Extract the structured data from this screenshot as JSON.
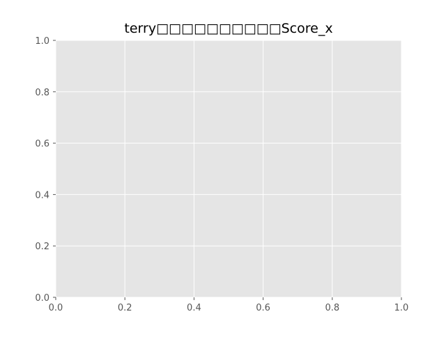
{
  "chart_data": {
    "type": "scatter",
    "title": "terry□□□□□□□□□□Score_x",
    "xlabel": "",
    "ylabel": "",
    "xlim": [
      0.0,
      1.0
    ],
    "ylim": [
      0.0,
      1.0
    ],
    "xticks": [
      "0.0",
      "0.2",
      "0.4",
      "0.6",
      "0.8",
      "1.0"
    ],
    "yticks": [
      "0.0",
      "0.2",
      "0.4",
      "0.6",
      "0.8",
      "1.0"
    ],
    "grid": true,
    "legend": "none",
    "series": [],
    "colors": {
      "plot_background": "#e5e5e5",
      "grid": "#ffffff",
      "tick_label": "#555555",
      "title": "#000000"
    }
  }
}
